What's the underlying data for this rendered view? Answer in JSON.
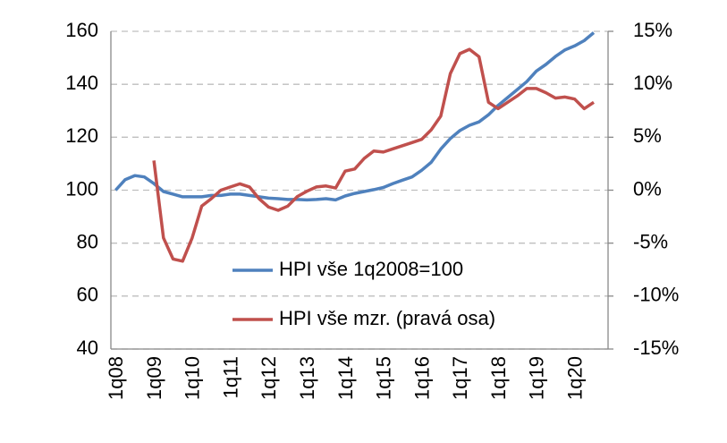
{
  "chart_data": {
    "type": "line",
    "categories": [
      "1q08",
      null,
      null,
      null,
      "1q09",
      null,
      null,
      null,
      "1q10",
      null,
      null,
      null,
      "1q11",
      null,
      null,
      null,
      "1q12",
      null,
      null,
      null,
      "1q13",
      null,
      null,
      null,
      "1q14",
      null,
      null,
      null,
      "1q15",
      null,
      null,
      null,
      "1q16",
      null,
      null,
      null,
      "1q17",
      null,
      null,
      null,
      "1q18",
      null,
      null,
      null,
      "1q19",
      null,
      null,
      null,
      "1q20",
      null,
      null,
      null
    ],
    "series": [
      {
        "name": "HPI vše 1q2008=100",
        "color": "#4f81bd",
        "values": [
          100,
          104,
          105.5,
          105,
          102.5,
          99.5,
          98.5,
          97.5,
          97.5,
          97.5,
          98,
          98,
          98.5,
          98.5,
          98,
          97.5,
          97,
          96.8,
          96.5,
          96.5,
          96.3,
          96.5,
          96.8,
          96.3,
          97.8,
          98.8,
          99.5,
          100.2,
          101,
          102.5,
          103.8,
          105,
          107.5,
          110.5,
          115.5,
          119.5,
          122.5,
          124.5,
          125.8,
          128.5,
          132,
          135,
          138,
          141,
          145,
          147.5,
          150.5,
          153,
          154.5,
          156.5,
          159.5,
          null
        ]
      },
      {
        "name": "HPI vše mzr. (pravá osa)",
        "color": "#c0504d",
        "axis": "y2",
        "values": [
          null,
          null,
          null,
          null,
          2.8,
          -4.5,
          -6.5,
          -6.7,
          -4.5,
          -1.5,
          -0.8,
          0,
          0.3,
          0.6,
          0.3,
          -0.8,
          -1.6,
          -1.9,
          -1.5,
          -0.6,
          -0.1,
          0.3,
          0.4,
          0.2,
          1.8,
          2.0,
          3.0,
          3.7,
          3.6,
          3.9,
          4.2,
          4.5,
          4.8,
          5.7,
          7.0,
          11,
          12.9,
          13.3,
          12.6,
          8.3,
          7.7,
          8.3,
          8.9,
          9.6,
          9.6,
          9.2,
          8.7,
          8.8,
          8.6,
          7.7,
          8.3,
          null
        ]
      }
    ],
    "ylim": [
      40,
      160
    ],
    "yticks": [
      40,
      60,
      80,
      100,
      120,
      140,
      160
    ],
    "y2lim": [
      -15,
      15
    ],
    "y2ticks": [
      {
        "value": -15,
        "label": "-15%"
      },
      {
        "value": -10,
        "label": "-10%"
      },
      {
        "value": -5,
        "label": "-5%"
      },
      {
        "value": 0,
        "label": "0%"
      },
      {
        "value": 5,
        "label": "5%"
      },
      {
        "value": 10,
        "label": "10%"
      },
      {
        "value": 15,
        "label": "15%"
      }
    ],
    "grid": true
  }
}
